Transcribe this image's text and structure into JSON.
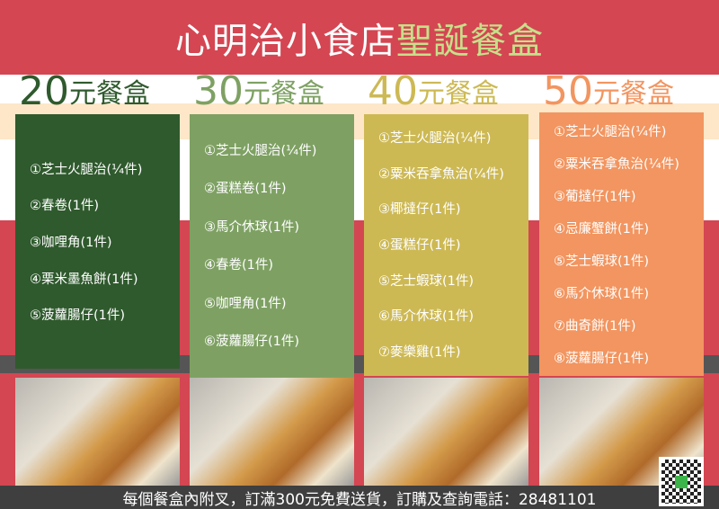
{
  "title": {
    "part1": "心明治小食店",
    "part2": "聖誕餐盒"
  },
  "colors": {
    "red": "#d44652",
    "green_title": "#c6e08a",
    "col1": "#2f5a2d",
    "col2": "#7ea163",
    "col3": "#cdb954",
    "col4": "#f29560"
  },
  "boxes": [
    {
      "price": "20",
      "unit": "元餐盒",
      "items": [
        "①芝士火腿治(¼件)",
        "②春卷(1件)",
        "③咖哩角(1件)",
        "④栗米墨魚餅(1件)",
        "⑤菠蘿腸仔(1件)"
      ]
    },
    {
      "price": "30",
      "unit": "元餐盒",
      "items": [
        "①芝士火腿治(¼件)",
        "②蛋糕卷(1件)",
        "③馬介休球(1件)",
        "④春卷(1件)",
        "⑤咖哩角(1件)",
        "⑥菠蘿腸仔(1件)"
      ]
    },
    {
      "price": "40",
      "unit": "元餐盒",
      "items": [
        "①芝士火腿治(¼件)",
        "②粟米吞拿魚治(¼件)",
        "③椰撻仔(1件)",
        "④蛋糕仔(1件)",
        "⑤芝士蝦球(1件)",
        "⑥馬介休球(1件)",
        "⑦麥樂雞(1件)"
      ]
    },
    {
      "price": "50",
      "unit": "元餐盒",
      "items": [
        "①芝士火腿治(¼件)",
        "②粟米吞拿魚治(¼件)",
        "③葡撻仔(1件)",
        "④忌廉蟹餅(1件)",
        "⑤芝士蝦球(1件)",
        "⑥馬介休球(1件)",
        "⑦曲奇餅(1件)",
        "⑧菠蘿腸仔(1件)"
      ]
    }
  ],
  "footer": "每個餐盒內附叉，訂滿300元免費送貨，訂購及查詢電話：28481101"
}
